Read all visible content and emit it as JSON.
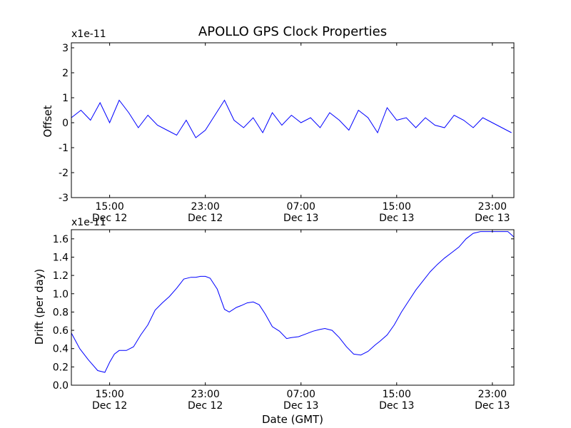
{
  "chart_data": [
    {
      "type": "line",
      "title": "APOLLO GPS Clock Properties",
      "ylabel": "Offset",
      "xlabel": "",
      "yscale_label": "x1e-11",
      "ylim": [
        -3,
        3.2
      ],
      "yticks": [
        -3,
        -2,
        -1,
        0,
        1,
        2,
        3
      ],
      "ytick_labels": [
        "-3",
        "-2",
        "-1",
        "0",
        "1",
        "2",
        "3"
      ],
      "xlim_hours": [
        11.8,
        48.8
      ],
      "xticks_hours": [
        15,
        23,
        31,
        39,
        47
      ],
      "xtick_labels": [
        [
          "15:00",
          "Dec 12"
        ],
        [
          "23:00",
          "Dec 12"
        ],
        [
          "07:00",
          "Dec 13"
        ],
        [
          "15:00",
          "Dec 13"
        ],
        [
          "23:00",
          "Dec 13"
        ]
      ],
      "line_color": "#0000ff",
      "series": [
        {
          "x": [
            11.8,
            12.6,
            13.4,
            14.2,
            15.0,
            15.8,
            16.6,
            17.4,
            18.2,
            19.0,
            19.8,
            20.6,
            21.4,
            22.2,
            23.0,
            23.8,
            24.6,
            25.4,
            26.2,
            27.0,
            27.8,
            28.6,
            29.4,
            30.2,
            31.0,
            31.8,
            32.6,
            33.4,
            34.2,
            35.0,
            35.8,
            36.6,
            37.4,
            38.2,
            39.0,
            39.8,
            40.6,
            41.4,
            42.2,
            43.0,
            43.8,
            44.6,
            45.4,
            46.2,
            47.0,
            47.8,
            48.6
          ],
          "y": [
            0.2,
            0.5,
            0.1,
            0.8,
            0.0,
            0.9,
            0.4,
            -0.2,
            0.3,
            -0.1,
            -0.3,
            -0.5,
            0.1,
            -0.6,
            -0.3,
            0.3,
            0.9,
            0.1,
            -0.2,
            0.2,
            -0.4,
            0.4,
            -0.1,
            0.3,
            0.0,
            0.2,
            -0.2,
            0.4,
            0.1,
            -0.3,
            0.5,
            0.2,
            -0.4,
            0.6,
            0.1,
            0.2,
            -0.2,
            0.2,
            -0.1,
            -0.2,
            0.3,
            0.1,
            -0.2,
            0.2,
            0.0,
            -0.2,
            -0.4
          ]
        }
      ]
    },
    {
      "type": "line",
      "title": "",
      "ylabel": "Drift (per day)",
      "xlabel": "Date (GMT)",
      "yscale_label": "x1e-11",
      "ylim": [
        0.0,
        1.7
      ],
      "yticks": [
        0.0,
        0.2,
        0.4,
        0.6,
        0.8,
        1.0,
        1.2,
        1.4,
        1.6
      ],
      "ytick_labels": [
        "0.0",
        "0.2",
        "0.4",
        "0.6",
        "0.8",
        "1.0",
        "1.2",
        "1.4",
        "1.6"
      ],
      "xlim_hours": [
        11.8,
        48.8
      ],
      "xticks_hours": [
        15,
        23,
        31,
        39,
        47
      ],
      "xtick_labels": [
        [
          "15:00",
          "Dec 12"
        ],
        [
          "23:00",
          "Dec 12"
        ],
        [
          "07:00",
          "Dec 13"
        ],
        [
          "15:00",
          "Dec 13"
        ],
        [
          "23:00",
          "Dec 13"
        ]
      ],
      "line_color": "#0000ff",
      "series": [
        {
          "x": [
            11.8,
            12.5,
            13.2,
            14.0,
            14.6,
            15.0,
            15.4,
            15.8,
            16.4,
            17.0,
            17.6,
            18.2,
            18.8,
            19.4,
            20.0,
            20.6,
            21.2,
            21.8,
            22.2,
            22.6,
            23.0,
            23.4,
            24.0,
            24.6,
            25.0,
            25.6,
            26.0,
            26.5,
            27.0,
            27.5,
            28.0,
            28.6,
            29.2,
            29.8,
            30.2,
            30.8,
            31.4,
            32.0,
            32.6,
            33.0,
            33.6,
            34.2,
            34.8,
            35.4,
            36.0,
            36.6,
            37.2,
            37.6,
            38.2,
            38.8,
            39.4,
            40.0,
            40.6,
            41.2,
            41.8,
            42.4,
            43.0,
            43.6,
            44.2,
            44.8,
            45.4,
            46.0,
            46.6,
            47.2,
            47.8,
            48.3,
            48.8
          ],
          "y": [
            0.57,
            0.4,
            0.28,
            0.16,
            0.14,
            0.25,
            0.34,
            0.38,
            0.38,
            0.42,
            0.55,
            0.66,
            0.82,
            0.9,
            0.97,
            1.06,
            1.16,
            1.18,
            1.18,
            1.19,
            1.19,
            1.17,
            1.05,
            0.83,
            0.8,
            0.85,
            0.87,
            0.9,
            0.91,
            0.88,
            0.78,
            0.64,
            0.59,
            0.51,
            0.52,
            0.53,
            0.56,
            0.59,
            0.61,
            0.62,
            0.6,
            0.52,
            0.42,
            0.34,
            0.33,
            0.37,
            0.44,
            0.48,
            0.55,
            0.66,
            0.8,
            0.92,
            1.04,
            1.14,
            1.24,
            1.32,
            1.39,
            1.45,
            1.51,
            1.6,
            1.66,
            1.68,
            1.68,
            1.68,
            1.68,
            1.68,
            1.62
          ]
        }
      ]
    }
  ]
}
